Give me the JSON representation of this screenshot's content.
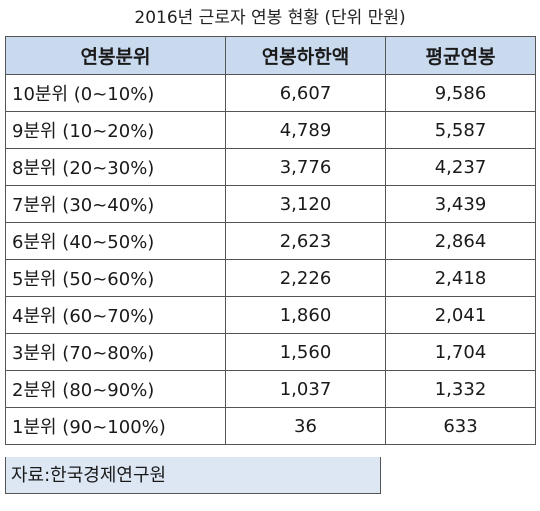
{
  "title": "2016년 근로자 연봉 현황 (단위 만원)",
  "table": {
    "headers": [
      "연봉분위",
      "연봉하한액",
      "평균연봉"
    ],
    "rows": [
      {
        "bracket": "10분위 (0~10%)",
        "min_salary": "6,607",
        "avg_salary": "9,586"
      },
      {
        "bracket": "9분위 (10~20%)",
        "min_salary": "4,789",
        "avg_salary": "5,587"
      },
      {
        "bracket": "8분위 (20~30%)",
        "min_salary": "3,776",
        "avg_salary": "4,237"
      },
      {
        "bracket": "7분위 (30~40%)",
        "min_salary": "3,120",
        "avg_salary": "3,439"
      },
      {
        "bracket": "6분위 (40~50%)",
        "min_salary": "2,623",
        "avg_salary": "2,864"
      },
      {
        "bracket": "5분위 (50~60%)",
        "min_salary": "2,226",
        "avg_salary": "2,418"
      },
      {
        "bracket": "4분위 (60~70%)",
        "min_salary": "1,860",
        "avg_salary": "2,041"
      },
      {
        "bracket": "3분위 (70~80%)",
        "min_salary": "1,560",
        "avg_salary": "1,704"
      },
      {
        "bracket": "2분위 (80~90%)",
        "min_salary": "1,037",
        "avg_salary": "1,332"
      },
      {
        "bracket": "1분위 (90~100%)",
        "min_salary": "36",
        "avg_salary": "633"
      }
    ]
  },
  "source": "자료:한국경제연구원"
}
